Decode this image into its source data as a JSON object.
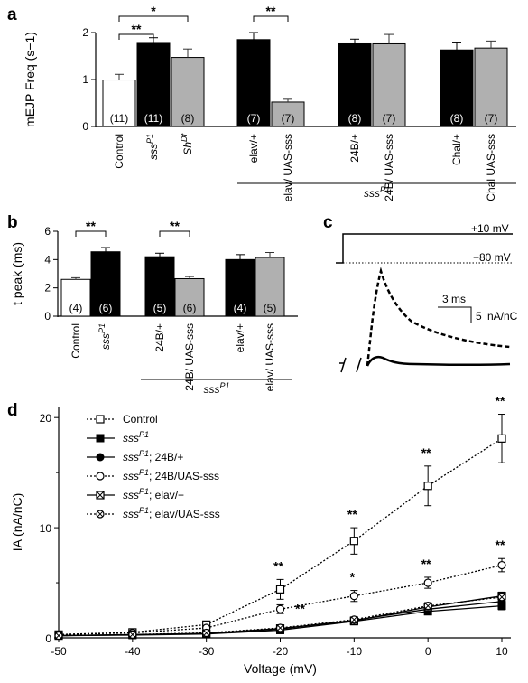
{
  "panels": {
    "a": "a",
    "b": "b",
    "c": "c",
    "d": "d"
  },
  "chart_data": [
    {
      "panel": "a",
      "type": "bar",
      "ylabel": "mEJP Freq (s−1)",
      "ylim": [
        0,
        2
      ],
      "yticks": [
        0,
        1,
        2
      ],
      "categories": [
        "Control",
        "sss P1",
        "Sh Df",
        "elav/+",
        "elav/ UAS-sss",
        "24B/+",
        "24B/ UAS-sss",
        "Chal/+",
        "Chal UAS-sss"
      ],
      "values": [
        0.99,
        1.77,
        1.47,
        1.85,
        0.52,
        1.76,
        1.76,
        1.63,
        1.67
      ],
      "errors": [
        0.12,
        0.12,
        0.18,
        0.15,
        0.06,
        0.1,
        0.2,
        0.15,
        0.15
      ],
      "colors": [
        "#ffffff",
        "#000000",
        "#b0b0b0",
        "#000000",
        "#b0b0b0",
        "#000000",
        "#b0b0b0",
        "#000000",
        "#b0b0b0"
      ],
      "n_labels": [
        "(11)",
        "(11)",
        "(8)",
        "(7)",
        "(7)",
        "(8)",
        "(7)",
        "(8)",
        "(7)"
      ],
      "significance": [
        {
          "from": 0,
          "to": 1,
          "label": "**"
        },
        {
          "from": 0,
          "to": 2,
          "label": "*"
        },
        {
          "from": 3,
          "to": 4,
          "label": "**"
        }
      ],
      "group_label": "sss P1"
    },
    {
      "panel": "b",
      "type": "bar",
      "ylabel": "t peak (ms)",
      "ylim": [
        0,
        6
      ],
      "yticks": [
        0,
        2,
        4,
        6
      ],
      "categories": [
        "Control",
        "sss P1",
        "24B/+",
        "24B/ UAS-sss",
        "elav/+",
        "elav/ UAS-sss"
      ],
      "values": [
        2.6,
        4.55,
        4.2,
        2.65,
        4.0,
        4.15
      ],
      "errors": [
        0.12,
        0.3,
        0.25,
        0.15,
        0.35,
        0.35
      ],
      "colors": [
        "#ffffff",
        "#000000",
        "#000000",
        "#b0b0b0",
        "#000000",
        "#b0b0b0"
      ],
      "n_labels": [
        "(4)",
        "(6)",
        "(5)",
        "(6)",
        "(4)",
        "(5)"
      ],
      "significance": [
        {
          "from": 0,
          "to": 1,
          "label": "**"
        },
        {
          "from": 2,
          "to": 3,
          "label": "**"
        }
      ],
      "group_label": "sss P1"
    },
    {
      "panel": "c",
      "type": "line",
      "voltage_high": "+10 mV",
      "voltage_low": "−80 mV",
      "time_scale": "3 ms",
      "current_scale": "5",
      "current_unit": "nA/nC"
    },
    {
      "panel": "d",
      "type": "line",
      "xlabel": "Voltage (mV)",
      "ylabel": "IA (nA/nC)",
      "xlim": [
        -50,
        10
      ],
      "ylim": [
        0,
        21
      ],
      "xticks": [
        -50,
        -40,
        -30,
        -20,
        -10,
        0,
        10
      ],
      "yticks": [
        0,
        10,
        20
      ],
      "x": [
        -50,
        -40,
        -30,
        -20,
        -10,
        0,
        10
      ],
      "series": [
        {
          "name": "Control",
          "values": [
            0.3,
            0.5,
            1.2,
            4.4,
            8.8,
            13.8,
            18.1
          ],
          "errors": [
            0.1,
            0.2,
            0.3,
            0.9,
            1.2,
            1.8,
            2.2
          ],
          "marker": "open-square",
          "dashed": true
        },
        {
          "name": "sss P1",
          "values": [
            0.2,
            0.25,
            0.35,
            0.7,
            1.5,
            2.4,
            2.9
          ],
          "errors": [
            0.05,
            0.05,
            0.1,
            0.2,
            0.25,
            0.3,
            0.35
          ],
          "marker": "filled-square",
          "dashed": false
        },
        {
          "name": "sss P1; 24B/+",
          "values": [
            0.2,
            0.28,
            0.4,
            0.8,
            1.6,
            2.6,
            3.3
          ],
          "errors": [
            0.05,
            0.05,
            0.1,
            0.2,
            0.25,
            0.3,
            0.35
          ],
          "marker": "filled-circle",
          "dashed": false
        },
        {
          "name": "sss P1; 24B/UAS-sss",
          "values": [
            0.3,
            0.45,
            0.9,
            2.6,
            3.8,
            5.0,
            6.6
          ],
          "errors": [
            0.1,
            0.1,
            0.2,
            0.4,
            0.5,
            0.5,
            0.6
          ],
          "marker": "open-circle",
          "dashed": true
        },
        {
          "name": "sss P1; elav/+",
          "values": [
            0.2,
            0.3,
            0.4,
            0.85,
            1.55,
            2.8,
            3.8
          ],
          "errors": [
            0.05,
            0.05,
            0.1,
            0.2,
            0.25,
            0.3,
            0.35
          ],
          "marker": "x-square",
          "dashed": false
        },
        {
          "name": "sss P1; elav/UAS-sss",
          "values": [
            0.2,
            0.3,
            0.45,
            0.9,
            1.65,
            2.9,
            3.7
          ],
          "errors": [
            0.05,
            0.05,
            0.1,
            0.2,
            0.25,
            0.3,
            0.35
          ],
          "marker": "x-circle",
          "dashed": true
        }
      ],
      "significance": [
        {
          "x": -20,
          "y": 4.4,
          "label": "**"
        },
        {
          "x": -20,
          "y": 2.6,
          "label": "**"
        },
        {
          "x": -10,
          "y": 8.8,
          "label": "**"
        },
        {
          "x": -10,
          "y": 3.8,
          "label": "*"
        },
        {
          "x": 0,
          "y": 13.8,
          "label": "**"
        },
        {
          "x": 0,
          "y": 5.0,
          "label": "**"
        },
        {
          "x": 10,
          "y": 18.1,
          "label": "**"
        },
        {
          "x": 10,
          "y": 6.6,
          "label": "**"
        }
      ]
    }
  ]
}
